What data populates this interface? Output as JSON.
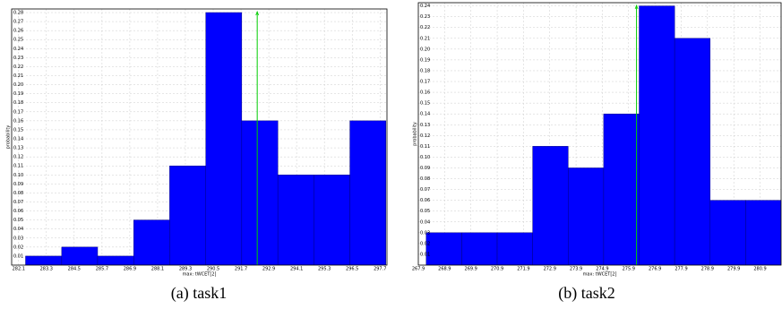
{
  "chart_data": [
    {
      "type": "histogram",
      "caption": "(a) task1",
      "xlabel": "max: tWCET[2]",
      "ylabel": "probability",
      "bins": [
        282.4,
        283.96,
        285.51,
        287.07,
        288.62,
        290.18,
        291.73,
        293.29,
        294.84,
        296.4,
        297.95
      ],
      "values": [
        0.01,
        0.02,
        0.01,
        0.05,
        0.11,
        0.28,
        0.16,
        0.1,
        0.1,
        0.16
      ],
      "color": "#0000ff",
      "grid": true,
      "marker_x": 292.4,
      "marker_color": "#00cc00",
      "xlim": [
        281.8,
        298.0
      ],
      "ylim": [
        0,
        0.284
      ],
      "xticks": [
        282.1,
        283.3,
        284.5,
        285.7,
        286.9,
        288.1,
        289.3,
        290.5,
        291.7,
        292.9,
        294.1,
        295.3,
        296.5,
        297.7
      ],
      "yticks": [
        0.01,
        0.02,
        0.03,
        0.04,
        0.05,
        0.06,
        0.07,
        0.08,
        0.09,
        {
          "value": 0.1,
          "label": "0.10"
        },
        0.11,
        0.12,
        0.13,
        0.14,
        0.15,
        0.16,
        0.17,
        0.18,
        0.19,
        {
          "value": 0.2,
          "label": "0.20"
        },
        0.21,
        0.22,
        0.23,
        0.24,
        0.25,
        0.26,
        0.27,
        0.28
      ]
    },
    {
      "type": "histogram",
      "caption": "(b) task2",
      "xlabel": "max: tWCET[2]",
      "ylabel": "probability",
      "bins": [
        268.2,
        269.55,
        270.9,
        272.25,
        273.6,
        274.95,
        276.3,
        277.65,
        279.0,
        280.35,
        281.7
      ],
      "values": [
        0.03,
        0.03,
        0.03,
        0.11,
        0.09,
        0.14,
        0.24,
        0.21,
        0.06,
        0.06
      ],
      "color": "#0000ff",
      "grid": true,
      "marker_x": 276.2,
      "marker_color": "#00cc00",
      "xlim": [
        267.9,
        281.7
      ],
      "ylim": [
        0,
        0.243
      ],
      "xticks": [
        267.9,
        268.9,
        269.9,
        270.9,
        271.9,
        272.9,
        273.9,
        274.9,
        275.9,
        276.9,
        277.9,
        278.9,
        279.9,
        280.9
      ],
      "yticks": [
        0.01,
        0.02,
        0.03,
        0.04,
        0.05,
        0.06,
        0.07,
        0.08,
        0.09,
        {
          "value": 0.1,
          "label": "0.10"
        },
        0.11,
        0.12,
        0.13,
        0.14,
        0.15,
        0.16,
        0.17,
        0.18,
        0.19,
        {
          "value": 0.2,
          "label": "0.20"
        },
        0.21,
        0.22,
        0.23,
        0.24
      ]
    }
  ]
}
